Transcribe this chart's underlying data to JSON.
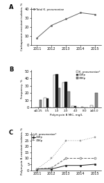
{
  "panel_A": {
    "years": [
      2011,
      2012,
      2013,
      2014,
      2015
    ],
    "values": [
      8,
      22,
      29,
      36,
      34
    ],
    "ylabel": "Carbapenem-resistant isolates, %",
    "legend": "Total K. pneumoniae",
    "ylim": [
      0,
      42
    ],
    "yticks": [
      0,
      10,
      20,
      30,
      40
    ]
  },
  "panel_B": {
    "categories": [
      "≤0.25",
      "0.5",
      "1.0",
      "2.0",
      "4.0",
      "8.0",
      "≥16.0"
    ],
    "kp_values": [
      0,
      14,
      45,
      35,
      2,
      1,
      3
    ],
    "cskp_values": [
      0,
      13,
      46,
      36,
      2,
      0,
      0
    ],
    "crkp_values": [
      11,
      0,
      27,
      22,
      0,
      0,
      20
    ],
    "ylabel": "Frequency, %",
    "xlabel": "Polymyxin B MIC, mg/L",
    "ylim": [
      0,
      52
    ],
    "yticks": [
      0,
      10,
      20,
      30,
      40,
      50
    ],
    "legend": [
      "K. pneumoniae*",
      "CSKp",
      "CRKp"
    ]
  },
  "panel_C": {
    "years": [
      2011,
      2012,
      2013,
      2014,
      2015
    ],
    "kp_values": [
      1,
      2,
      10,
      10,
      10
    ],
    "cskp_values": [
      1,
      1,
      4,
      4,
      5
    ],
    "crkp_values": [
      1,
      10,
      25,
      25,
      28
    ],
    "ylabel": "Polymyxin B-resistant isolates, %",
    "ylim": [
      0,
      32
    ],
    "yticks": [
      0,
      5,
      10,
      15,
      20,
      25,
      30
    ],
    "legend": [
      "K. pneumoniae*",
      "CSKp",
      "CRKp"
    ]
  },
  "colors": {
    "white_bar": "#ffffff",
    "black_bar": "#111111",
    "gray_bar": "#888888",
    "line_kp": "#666666",
    "line_cskp": "#222222",
    "line_crkp": "#999999",
    "edge": "#444444"
  }
}
